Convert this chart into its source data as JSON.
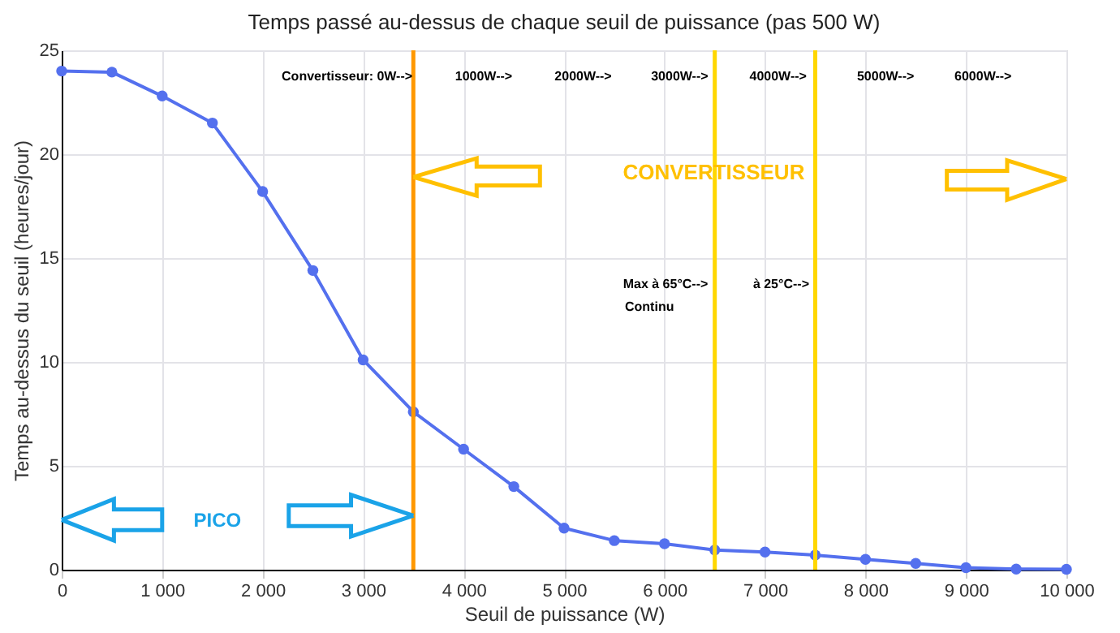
{
  "chart_data": {
    "type": "line",
    "title": "Temps passé au-dessus de chaque seuil de puissance (pas 500 W)",
    "xlabel": "Seuil de puissance (W)",
    "ylabel": "Temps au-dessus du seuil (heures/jour)",
    "x": [
      0,
      500,
      1000,
      1500,
      2000,
      2500,
      3000,
      3500,
      4000,
      4500,
      5000,
      5500,
      6000,
      6500,
      7000,
      7500,
      8000,
      8500,
      9000,
      9500,
      10000
    ],
    "series": [
      {
        "color": "#5470ee",
        "values": [
          24.0,
          23.95,
          22.8,
          21.5,
          18.2,
          14.4,
          10.1,
          7.6,
          5.8,
          4.0,
          2.0,
          1.4,
          1.25,
          0.95,
          0.85,
          0.7,
          0.5,
          0.3,
          0.1,
          0.03,
          0.02
        ]
      }
    ],
    "xlim": [
      0,
      10000
    ],
    "ylim": [
      0,
      25
    ],
    "xticks": [
      0,
      {
        "value": 1000,
        "label": "1 000"
      },
      {
        "value": 2000,
        "label": "2 000"
      },
      {
        "value": 3000,
        "label": "3 000"
      },
      {
        "value": 4000,
        "label": "4 000"
      },
      {
        "value": 5000,
        "label": "5 000"
      },
      {
        "value": 6000,
        "label": "6 000"
      },
      {
        "value": 7000,
        "label": "7 000"
      },
      {
        "value": 8000,
        "label": "8 000"
      },
      {
        "value": 9000,
        "label": "9 000"
      },
      {
        "value": 10000,
        "label": "10 000"
      }
    ],
    "yticks": [
      0,
      5,
      10,
      15,
      20,
      25
    ],
    "grid": true,
    "marker": "circle",
    "line_style": "solid",
    "ref_lines": [
      {
        "axis": "x",
        "value": 3500,
        "color": "#ff9800"
      },
      {
        "axis": "x",
        "value": 6500,
        "color": "#ffd700"
      },
      {
        "axis": "x",
        "value": 7500,
        "color": "#ffd700"
      }
    ],
    "annotations": [
      "Convertisseur: 0W-->",
      "1000W-->",
      "2000W-->",
      "3000W-->",
      "4000W-->",
      "5000W-->",
      "6000W-->",
      "CONVERTISSEUR",
      "Max à 65°C-->",
      "Continu",
      "à 25°C-->",
      "PICO"
    ]
  }
}
